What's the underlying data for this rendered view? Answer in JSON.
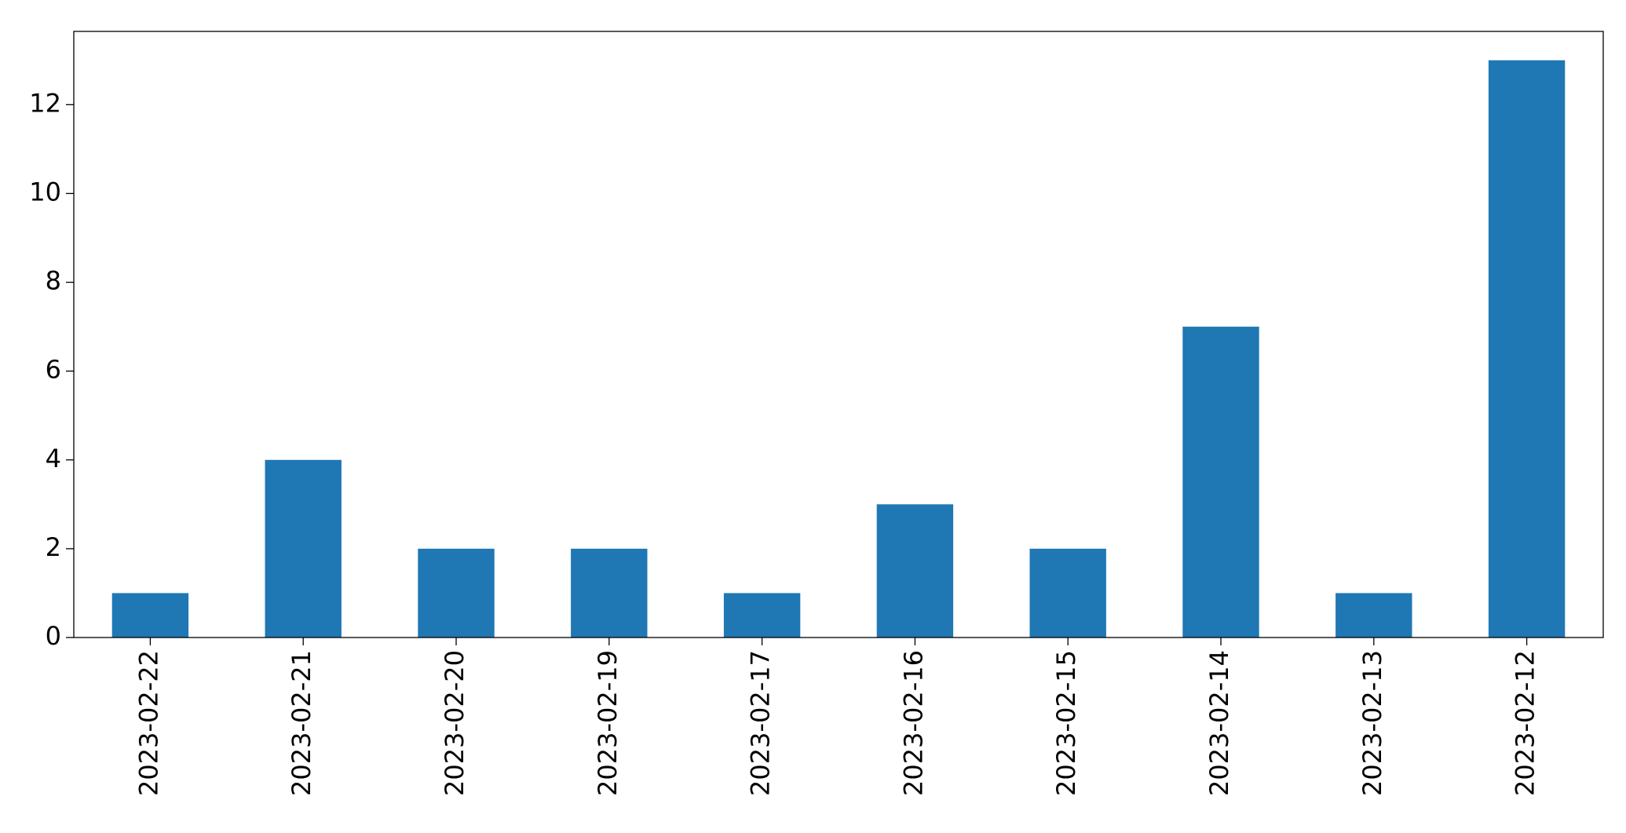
{
  "chart_data": {
    "type": "bar",
    "categories": [
      "2023-02-22",
      "2023-02-21",
      "2023-02-20",
      "2023-02-19",
      "2023-02-17",
      "2023-02-16",
      "2023-02-15",
      "2023-02-14",
      "2023-02-13",
      "2023-02-12"
    ],
    "values": [
      1,
      4,
      2,
      2,
      1,
      3,
      2,
      7,
      1,
      13
    ],
    "color": "#1f77b4",
    "ylim": [
      0,
      13.65
    ],
    "yticks": [
      0,
      2,
      4,
      6,
      8,
      10,
      12
    ],
    "grid": false
  }
}
